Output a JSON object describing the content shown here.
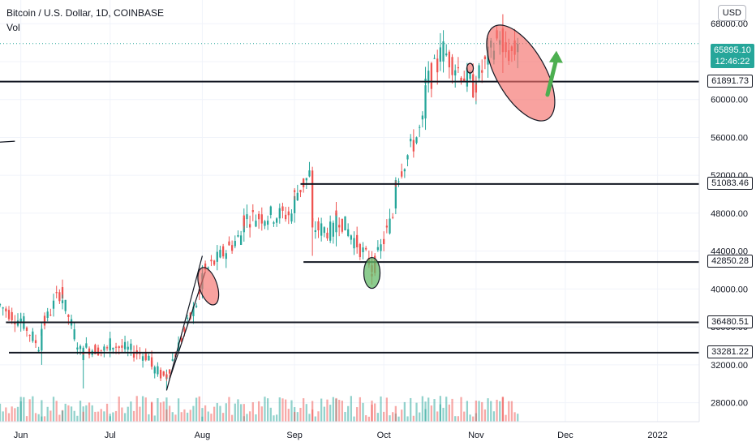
{
  "header": {
    "title": "Bitcoin / U.S. Dollar, 1D, COINBASE",
    "volume_label": "Vol",
    "currency_button": "USD"
  },
  "price_tag": {
    "price": "65895.10",
    "countdown": "12:46:22"
  },
  "chart_data": {
    "type": "candlestick",
    "title": "Bitcoin / U.S. Dollar, 1D, COINBASE",
    "x_range": [
      "2021-05-25",
      "2022-01-15"
    ],
    "y_range": [
      26000,
      70500
    ],
    "x_tick_labels": [
      {
        "label": "Jun",
        "date": "2021-06-01"
      },
      {
        "label": "Jul",
        "date": "2021-07-01"
      },
      {
        "label": "Aug",
        "date": "2021-08-01"
      },
      {
        "label": "Sep",
        "date": "2021-09-01"
      },
      {
        "label": "Oct",
        "date": "2021-10-01"
      },
      {
        "label": "Nov",
        "date": "2021-11-01"
      },
      {
        "label": "Dec",
        "date": "2021-12-01"
      },
      {
        "label": "2022",
        "date": "2022-01-01"
      }
    ],
    "y_tick_labels": [
      "68000.00",
      "64000.00",
      "60000.00",
      "56000.00",
      "52000.00",
      "48000.00",
      "44000.00",
      "40000.00",
      "36000.00",
      "32000.00",
      "28000.00"
    ],
    "current_price": 65895.1,
    "horizontal_levels": [
      {
        "label": "61891.73",
        "value": 61891.73,
        "from": "2021-05-25"
      },
      {
        "label": "51083.46",
        "value": 51083.46,
        "from": "2021-09-03"
      },
      {
        "label": "42850.28",
        "value": 42850.28,
        "from": "2021-09-04"
      },
      {
        "label": "36480.51",
        "value": 36480.51,
        "from": "2021-05-27"
      },
      {
        "label": "33281.22",
        "value": 33281.22,
        "from": "2021-05-28"
      }
    ],
    "trendlines": [
      {
        "from": [
          "2021-05-25",
          55500
        ],
        "to": [
          "2021-05-30",
          55600
        ]
      },
      {
        "from": [
          "2021-07-20",
          29300
        ],
        "to": [
          "2021-08-01",
          43500
        ]
      },
      {
        "from": [
          "2021-07-21",
          30500
        ],
        "to": [
          "2021-08-02",
          41800
        ]
      }
    ],
    "highlights": [
      {
        "color": "red",
        "center": [
          "2021-08-03",
          40300
        ]
      },
      {
        "color": "green",
        "center": [
          "2021-09-27",
          41700
        ]
      },
      {
        "color": "red",
        "center": [
          "2021-10-30",
          63300
        ]
      },
      {
        "color": "red",
        "center": [
          "2021-11-16",
          62800
        ]
      }
    ],
    "arrow": {
      "color": "green",
      "from": [
        "2021-11-25",
        60500
      ],
      "to": [
        "2021-11-28",
        64800
      ]
    },
    "series": [
      {
        "name": "price",
        "values": [
          {
            "date": "2021-05-25",
            "open": 38800,
            "high": 39500,
            "low": 37800,
            "close": 38300
          },
          {
            "date": "2021-06-01",
            "open": 36500,
            "high": 37500,
            "low": 35500,
            "close": 36800
          },
          {
            "date": "2021-06-08",
            "open": 33500,
            "high": 36500,
            "low": 32000,
            "close": 35800
          },
          {
            "date": "2021-06-15",
            "open": 40200,
            "high": 41000,
            "low": 38500,
            "close": 39000
          },
          {
            "date": "2021-06-22",
            "open": 32500,
            "high": 34000,
            "low": 29500,
            "close": 33800
          },
          {
            "date": "2021-07-01",
            "open": 33500,
            "high": 35500,
            "low": 32800,
            "close": 34200
          },
          {
            "date": "2021-07-15",
            "open": 32800,
            "high": 33500,
            "low": 31500,
            "close": 31800
          },
          {
            "date": "2021-07-20",
            "open": 30500,
            "high": 31500,
            "low": 29300,
            "close": 31000
          },
          {
            "date": "2021-08-01",
            "open": 40000,
            "high": 42500,
            "low": 39000,
            "close": 41500
          },
          {
            "date": "2021-08-15",
            "open": 46000,
            "high": 48500,
            "low": 45000,
            "close": 47500
          },
          {
            "date": "2021-09-01",
            "open": 48000,
            "high": 50500,
            "low": 47000,
            "close": 49800
          },
          {
            "date": "2021-09-07",
            "open": 52500,
            "high": 52900,
            "low": 43500,
            "close": 46500
          },
          {
            "date": "2021-09-15",
            "open": 46000,
            "high": 48500,
            "low": 44500,
            "close": 48000
          },
          {
            "date": "2021-09-27",
            "open": 42500,
            "high": 44000,
            "low": 40700,
            "close": 41800
          },
          {
            "date": "2021-10-05",
            "open": 48500,
            "high": 51800,
            "low": 47900,
            "close": 51500
          },
          {
            "date": "2021-10-15",
            "open": 58000,
            "high": 62500,
            "low": 56800,
            "close": 61500
          },
          {
            "date": "2021-10-20",
            "open": 64000,
            "high": 67000,
            "low": 63000,
            "close": 65500
          },
          {
            "date": "2021-11-01",
            "open": 61000,
            "high": 62500,
            "low": 59500,
            "close": 61800
          },
          {
            "date": "2021-11-10",
            "open": 67500,
            "high": 69000,
            "low": 62800,
            "close": 65000
          },
          {
            "date": "2021-11-15",
            "open": 65000,
            "high": 66500,
            "low": 63300,
            "close": 65895
          }
        ]
      },
      {
        "name": "Vol",
        "values": []
      }
    ]
  }
}
